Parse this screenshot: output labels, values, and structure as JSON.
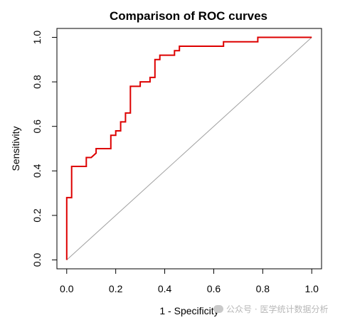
{
  "chart_data": {
    "type": "line",
    "title": "Comparison of ROC curves",
    "xlabel": "1 - Specificity",
    "ylabel": "Sensitivity",
    "xlim": [
      -0.04,
      1.04
    ],
    "ylim": [
      -0.04,
      1.04
    ],
    "xticks": [
      0.0,
      0.2,
      0.4,
      0.6,
      0.8,
      1.0
    ],
    "xtick_labels": [
      "0.0",
      "0.2",
      "0.4",
      "0.6",
      "0.8",
      "1.0"
    ],
    "yticks": [
      0.0,
      0.2,
      0.4,
      0.6,
      0.8,
      1.0
    ],
    "ytick_labels": [
      "0.0",
      "0.2",
      "0.4",
      "0.6",
      "0.8",
      "1.0"
    ],
    "grid": false,
    "reference_line": {
      "from": [
        0,
        0
      ],
      "to": [
        1,
        1
      ],
      "color": "#a0a0a0"
    },
    "series": [
      {
        "color": "#dd0000",
        "x": [
          0,
          0,
          0.02,
          0.02,
          0.08,
          0.08,
          0.1,
          0.12,
          0.12,
          0.18,
          0.18,
          0.2,
          0.2,
          0.22,
          0.22,
          0.24,
          0.24,
          0.26,
          0.26,
          0.3,
          0.3,
          0.34,
          0.34,
          0.36,
          0.36,
          0.38,
          0.38,
          0.44,
          0.44,
          0.46,
          0.46,
          0.64,
          0.64,
          0.78,
          0.78,
          1.0
        ],
        "y": [
          0,
          0.28,
          0.28,
          0.42,
          0.42,
          0.46,
          0.46,
          0.48,
          0.5,
          0.5,
          0.56,
          0.56,
          0.58,
          0.58,
          0.62,
          0.62,
          0.66,
          0.66,
          0.78,
          0.78,
          0.8,
          0.8,
          0.82,
          0.82,
          0.9,
          0.9,
          0.92,
          0.92,
          0.94,
          0.94,
          0.96,
          0.96,
          0.98,
          0.98,
          1.0,
          1.0
        ]
      }
    ]
  },
  "watermark": {
    "icon": "wechat-icon",
    "text": "公众号 · 医学统计数据分析"
  }
}
